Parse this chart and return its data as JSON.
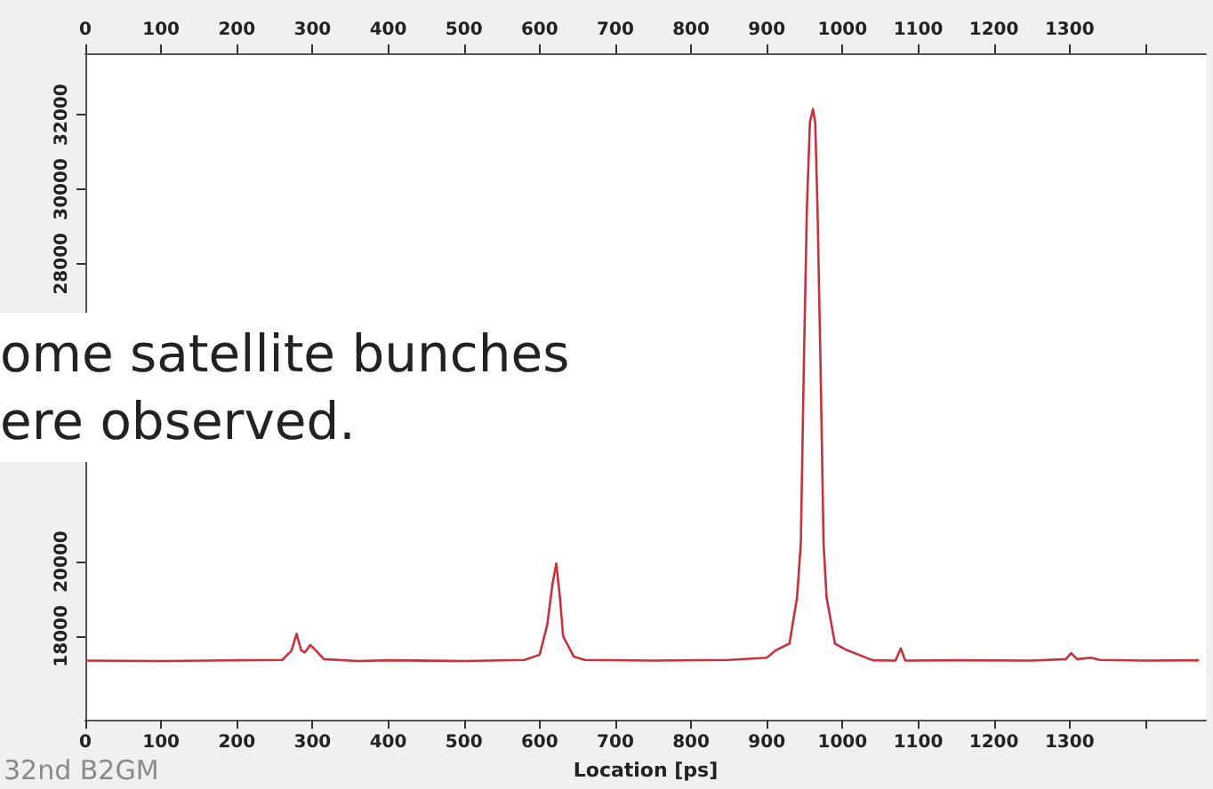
{
  "chart_data": {
    "type": "line",
    "xlabel": "Location [ps]",
    "annotations": [
      "ome satellite bunches\nere observed.",
      "32nd B2GM"
    ],
    "x": [
      0,
      100,
      200,
      260,
      272,
      279,
      285,
      290,
      297,
      305,
      315,
      360,
      400,
      500,
      580,
      600,
      610,
      617,
      622,
      627,
      631,
      636,
      645,
      660,
      750,
      850,
      900,
      912,
      930,
      940,
      945,
      949,
      953,
      957,
      961,
      964,
      967,
      971,
      975,
      979,
      990,
      1006,
      1040,
      1070,
      1077,
      1083,
      1150,
      1250,
      1295,
      1302,
      1310,
      1328,
      1340,
      1400,
      1471
    ],
    "series": [
      {
        "color": "#c8323c",
        "values": [
          17340,
          17330,
          17350,
          17360,
          17600,
          18060,
          17620,
          17560,
          17760,
          17600,
          17380,
          17330,
          17350,
          17330,
          17360,
          17500,
          18300,
          19400,
          19950,
          19000,
          18000,
          17800,
          17450,
          17360,
          17340,
          17360,
          17420,
          17620,
          17800,
          19040,
          20500,
          25300,
          29500,
          31800,
          32150,
          31800,
          29500,
          25300,
          20500,
          19040,
          17800,
          17620,
          17350,
          17340,
          17670,
          17340,
          17350,
          17340,
          17380,
          17540,
          17380,
          17420,
          17360,
          17340,
          17350
        ]
      }
    ],
    "xlim": [
      0,
      1480
    ],
    "xticks": [
      0,
      100,
      200,
      300,
      400,
      500,
      600,
      700,
      800,
      900,
      1000,
      1100,
      1200,
      1300,
      {
        "value": 1400,
        "label": null
      }
    ],
    "x2lim": [
      0,
      1480
    ],
    "x2ticks": [
      0,
      100,
      200,
      300,
      400,
      500,
      600,
      700,
      800,
      900,
      1000,
      1100,
      1200,
      1300,
      {
        "value": 1400,
        "label": null
      }
    ],
    "ylim": [
      15750,
      33650
    ],
    "yticks": [
      18000,
      20000,
      28000,
      30000,
      32000
    ],
    "grid": false,
    "marker": "none",
    "line_style": "solid"
  }
}
